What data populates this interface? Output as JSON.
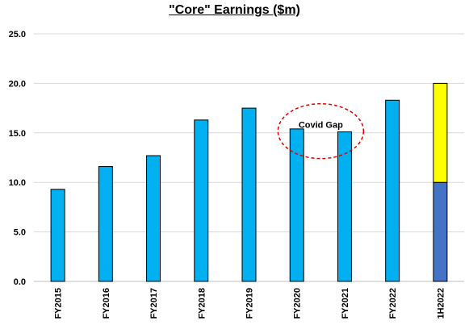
{
  "chart_data": {
    "type": "bar",
    "title": "\"Core\" Earnings ($m)",
    "xlabel": "",
    "ylabel": "",
    "categories": [
      "FY2015",
      "FY2016",
      "FY2017",
      "FY2018",
      "FY2019",
      "FY2020",
      "FY2021",
      "FY2022",
      "1H2022"
    ],
    "y_ticks": [
      "0.0",
      "5.0",
      "10.0",
      "15.0",
      "20.0",
      "25.0"
    ],
    "ylim": [
      0,
      25
    ],
    "grid": true,
    "stacked": true,
    "series": [
      {
        "values": [
          9.3,
          11.6,
          12.7,
          16.3,
          17.5,
          15.4,
          15.1,
          18.3,
          10.0
        ],
        "colors": [
          "#00b0f0",
          "#00b0f0",
          "#00b0f0",
          "#00b0f0",
          "#00b0f0",
          "#00b0f0",
          "#00b0f0",
          "#00b0f0",
          "#4472c4"
        ]
      },
      {
        "values": [
          0,
          0,
          0,
          0,
          0,
          0,
          0,
          0,
          10.0
        ],
        "colors": [
          "#ffff00",
          "#ffff00",
          "#ffff00",
          "#ffff00",
          "#ffff00",
          "#ffff00",
          "#ffff00",
          "#ffff00",
          "#ffff00"
        ]
      }
    ],
    "annotations": [
      {
        "text": "Covid Gap",
        "shape": "dashed-ellipse",
        "color": "#e00000",
        "between": [
          "FY2020",
          "FY2021"
        ]
      }
    ]
  }
}
